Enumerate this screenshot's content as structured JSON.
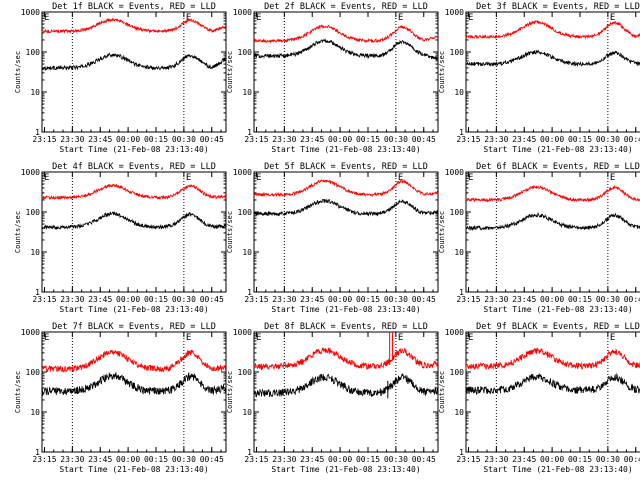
{
  "figure": {
    "charts": [
      {
        "id": 1,
        "title": "Det 1f BLACK = Events, RED = LLD",
        "ylabel": "Counts/sec",
        "xlabel": "Start Time (21-Feb-08 23:13:40)",
        "events_base": 40,
        "events_peak": 85,
        "lld_base": 330,
        "lld_peak": 640,
        "dip_end": 65,
        "lld_dip_end": 420
      },
      {
        "id": 2,
        "title": "Det 2f BLACK = Events, RED = LLD",
        "ylabel": "Counts/sec",
        "xlabel": "Start Time (21-Feb-08 23:13:40)",
        "events_base": 80,
        "events_peak": 190,
        "lld_base": 190,
        "lld_peak": 440,
        "dip_end": 70,
        "lld_dip_end": 240
      },
      {
        "id": 3,
        "title": "Det 3f BLACK = Events, RED = LLD",
        "ylabel": "Counts/sec",
        "xlabel": "Start Time (21-Feb-08 23:13:40)",
        "events_base": 50,
        "events_peak": 100,
        "lld_base": 240,
        "lld_peak": 560,
        "dip_end": 55,
        "lld_dip_end": 320
      },
      {
        "id": 4,
        "title": "Det 4f BLACK = Events, RED = LLD",
        "ylabel": "Counts/sec",
        "xlabel": "Start Time (21-Feb-08 23:13:40)",
        "events_base": 42,
        "events_peak": 90,
        "lld_base": 230,
        "lld_peak": 460,
        "dip_end": 45,
        "lld_dip_end": 250
      },
      {
        "id": 5,
        "title": "Det 5f BLACK = Events, RED = LLD",
        "ylabel": "Counts/sec",
        "xlabel": "Start Time (21-Feb-08 23:13:40)",
        "events_base": 90,
        "events_peak": 190,
        "lld_base": 270,
        "lld_peak": 600,
        "dip_end": 100,
        "lld_dip_end": 300
      },
      {
        "id": 6,
        "title": "Det 6f BLACK = Events, RED = LLD",
        "ylabel": "Counts/sec",
        "xlabel": "Start Time (21-Feb-08 23:13:40)",
        "events_base": 40,
        "events_peak": 85,
        "lld_base": 200,
        "lld_peak": 420,
        "dip_end": 45,
        "lld_dip_end": 220
      },
      {
        "id": 7,
        "title": "Det 7f BLACK = Events, RED = LLD",
        "ylabel": "Counts/sec",
        "xlabel": "Start Time (21-Feb-08 23:13:40)",
        "events_base": 33,
        "events_peak": 80,
        "lld_base": 120,
        "lld_peak": 320,
        "dip_end": 40,
        "lld_dip_end": 130
      },
      {
        "id": 8,
        "title": "Det 8f BLACK = Events, RED = LLD",
        "ylabel": "Counts/sec",
        "xlabel": "Start Time (21-Feb-08 23:13:40)",
        "events_base": 30,
        "events_peak": 75,
        "lld_base": 140,
        "lld_peak": 350,
        "dip_end": 35,
        "lld_dip_end": 160,
        "spike": true
      },
      {
        "id": 9,
        "title": "Det 9f BLACK = Events, RED = LLD",
        "ylabel": "Counts/sec",
        "xlabel": "Start Time (21-Feb-08 23:13:40)",
        "events_base": 35,
        "events_peak": 75,
        "lld_base": 140,
        "lld_peak": 340,
        "dip_end": 40,
        "lld_dip_end": 150
      }
    ],
    "x_ticks": [
      "23:15",
      "23:30",
      "23:45",
      "00:00",
      "00:15",
      "00:30",
      "00:45"
    ],
    "y_ticks": [
      "1",
      "10",
      "100",
      "1000"
    ],
    "marker_label": "E",
    "colors": {
      "events": "#000000",
      "lld": "#ff0000",
      "axes": "#000000",
      "background": "#ffffff"
    }
  },
  "chart_data": {
    "type": "line",
    "grid": "3x3",
    "yscale": "log",
    "ylim": [
      1,
      1000
    ],
    "x_range": [
      "23:13:40",
      "00:53"
    ],
    "vertical_markers": [
      "23:30",
      "00:30"
    ],
    "series_names": [
      "Events",
      "LLD"
    ],
    "series_colors": {
      "Events": "black",
      "LLD": "red"
    }
  }
}
